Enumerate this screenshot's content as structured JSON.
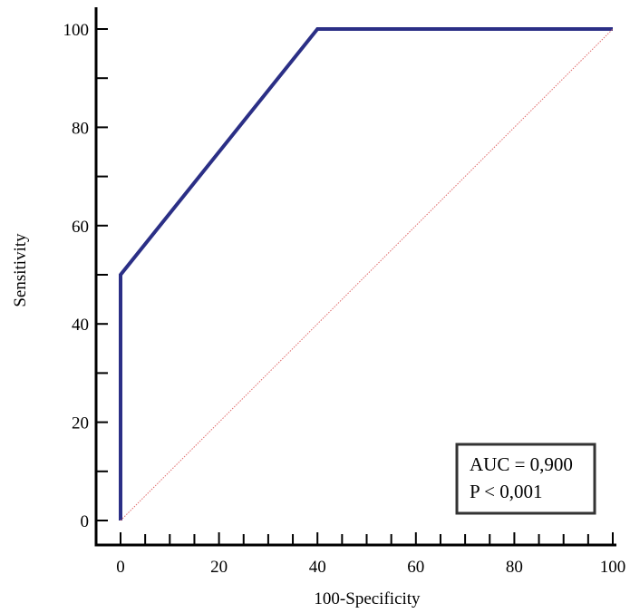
{
  "chart_data": {
    "type": "line",
    "xlabel": "100-Specificity",
    "ylabel": "Sensitivity",
    "xlim": [
      0,
      100
    ],
    "ylim": [
      0,
      100
    ],
    "x_ticks": [
      "0",
      "20",
      "40",
      "60",
      "80",
      "100"
    ],
    "y_ticks": [
      "0",
      "20",
      "40",
      "60",
      "80",
      "100"
    ],
    "grid": false,
    "series": [
      {
        "color": "#2b2f86",
        "points": [
          [
            0,
            0
          ],
          [
            0,
            50
          ],
          [
            40,
            100
          ],
          [
            100,
            100
          ]
        ]
      },
      {
        "color": "#e06a6a",
        "style": "dotted",
        "points": [
          [
            0,
            0
          ],
          [
            100,
            100
          ]
        ]
      }
    ],
    "annotations": {
      "placement": "bottom-right",
      "lines": [
        "AUC = 0,900",
        "P < 0,001"
      ]
    }
  }
}
